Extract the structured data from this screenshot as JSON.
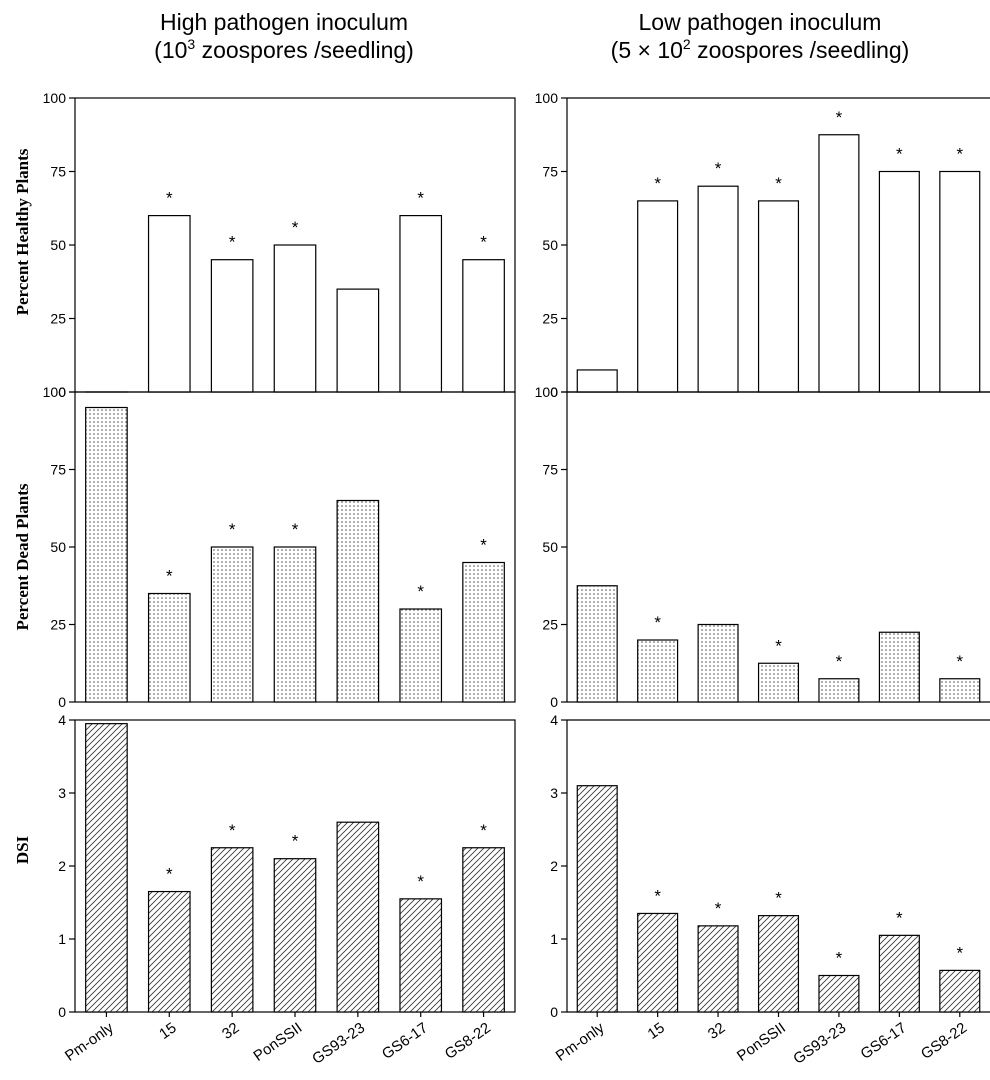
{
  "column_titles": [
    {
      "line1": "High pathogen inoculum",
      "line2_pre": "(10",
      "line2_sup": "3",
      "line2_post": " zoospores /seedling)"
    },
    {
      "line1": "Low pathogen inoculum",
      "line2_pre": "(5 × 10",
      "line2_sup": "2",
      "line2_post": " zoospores /seedling)"
    }
  ],
  "chart_data": [
    {
      "type": "bar",
      "panel": "high-healthy",
      "ylabel": "Percent Healthy Plants",
      "ylim": [
        0,
        100
      ],
      "yticks": [
        0,
        25,
        50,
        75,
        100
      ],
      "fill": "open",
      "categories": [
        "Pm-only",
        "15",
        "32",
        "PonSSII",
        "GS93-23",
        "GS6-17",
        "GS8-22"
      ],
      "values": [
        0,
        60,
        45,
        50,
        35,
        60,
        45
      ],
      "significant": [
        false,
        true,
        true,
        true,
        false,
        true,
        true
      ]
    },
    {
      "type": "bar",
      "panel": "low-healthy",
      "ylabel": "",
      "ylim": [
        0,
        100
      ],
      "yticks": [
        0,
        25,
        50,
        75,
        100
      ],
      "fill": "open",
      "categories": [
        "Pm-only",
        "15",
        "32",
        "PonSSII",
        "GS93-23",
        "GS6-17",
        "GS8-22"
      ],
      "values": [
        7.5,
        65,
        70,
        65,
        87.5,
        75,
        75
      ],
      "significant": [
        false,
        true,
        true,
        true,
        true,
        true,
        true
      ]
    },
    {
      "type": "bar",
      "panel": "high-dead",
      "ylabel": "Percent Dead Plants",
      "ylim": [
        0,
        100
      ],
      "yticks": [
        0,
        25,
        50,
        75,
        100
      ],
      "fill": "dotted",
      "categories": [
        "Pm-only",
        "15",
        "32",
        "PonSSII",
        "GS93-23",
        "GS6-17",
        "GS8-22"
      ],
      "values": [
        95,
        35,
        50,
        50,
        65,
        30,
        45
      ],
      "significant": [
        false,
        true,
        true,
        true,
        false,
        true,
        true
      ]
    },
    {
      "type": "bar",
      "panel": "low-dead",
      "ylabel": "",
      "ylim": [
        0,
        100
      ],
      "yticks": [
        0,
        25,
        50,
        75,
        100
      ],
      "fill": "dotted",
      "categories": [
        "Pm-only",
        "15",
        "32",
        "PonSSII",
        "GS93-23",
        "GS6-17",
        "GS8-22"
      ],
      "values": [
        37.5,
        20,
        25,
        12.5,
        7.5,
        22.5,
        7.5
      ],
      "significant": [
        false,
        true,
        false,
        true,
        true,
        false,
        true
      ]
    },
    {
      "type": "bar",
      "panel": "high-dsi",
      "ylabel": "DSI",
      "ylim": [
        0,
        4
      ],
      "yticks": [
        0,
        1,
        2,
        3,
        4
      ],
      "fill": "hatched",
      "categories": [
        "Pm-only",
        "15",
        "32",
        "PonSSII",
        "GS93-23",
        "GS6-17",
        "GS8-22"
      ],
      "values": [
        3.95,
        1.65,
        2.25,
        2.1,
        2.6,
        1.55,
        2.25
      ],
      "significant": [
        false,
        true,
        true,
        true,
        false,
        true,
        true
      ]
    },
    {
      "type": "bar",
      "panel": "low-dsi",
      "ylabel": "",
      "ylim": [
        0,
        4
      ],
      "yticks": [
        0,
        1,
        2,
        3,
        4
      ],
      "fill": "hatched",
      "categories": [
        "Pm-only",
        "15",
        "32",
        "PonSSII",
        "GS93-23",
        "GS6-17",
        "GS8-22"
      ],
      "values": [
        3.1,
        1.35,
        1.18,
        1.32,
        0.5,
        1.05,
        0.57
      ],
      "significant": [
        false,
        true,
        true,
        true,
        true,
        true,
        true
      ]
    }
  ],
  "star_symbol": "*",
  "colors": {
    "ink": "#000000",
    "background": "#ffffff"
  }
}
